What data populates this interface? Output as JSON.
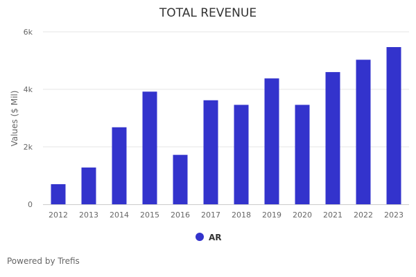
{
  "chart_data": {
    "type": "bar",
    "title": "TOTAL REVENUE",
    "xlabel": "",
    "ylabel": "Values ($ Mil)",
    "categories": [
      "2012",
      "2013",
      "2014",
      "2015",
      "2016",
      "2017",
      "2018",
      "2019",
      "2020",
      "2021",
      "2022",
      "2023"
    ],
    "series": [
      {
        "name": "AR",
        "values": [
          700,
          1280,
          2680,
          3920,
          1720,
          3620,
          3460,
          4380,
          3460,
          4600,
          5030,
          5470
        ]
      }
    ],
    "ylim": [
      0,
      6000
    ],
    "yticks": [
      0,
      2000,
      4000,
      6000
    ],
    "ytick_labels": [
      "0",
      "2k",
      "4k",
      "6k"
    ],
    "grid": true,
    "legend": "bottom-center"
  },
  "colors": {
    "bar": "#3333cc",
    "grid": "#e6e6e6",
    "axis": "#cccccc"
  },
  "credit": "Powered by Trefis"
}
